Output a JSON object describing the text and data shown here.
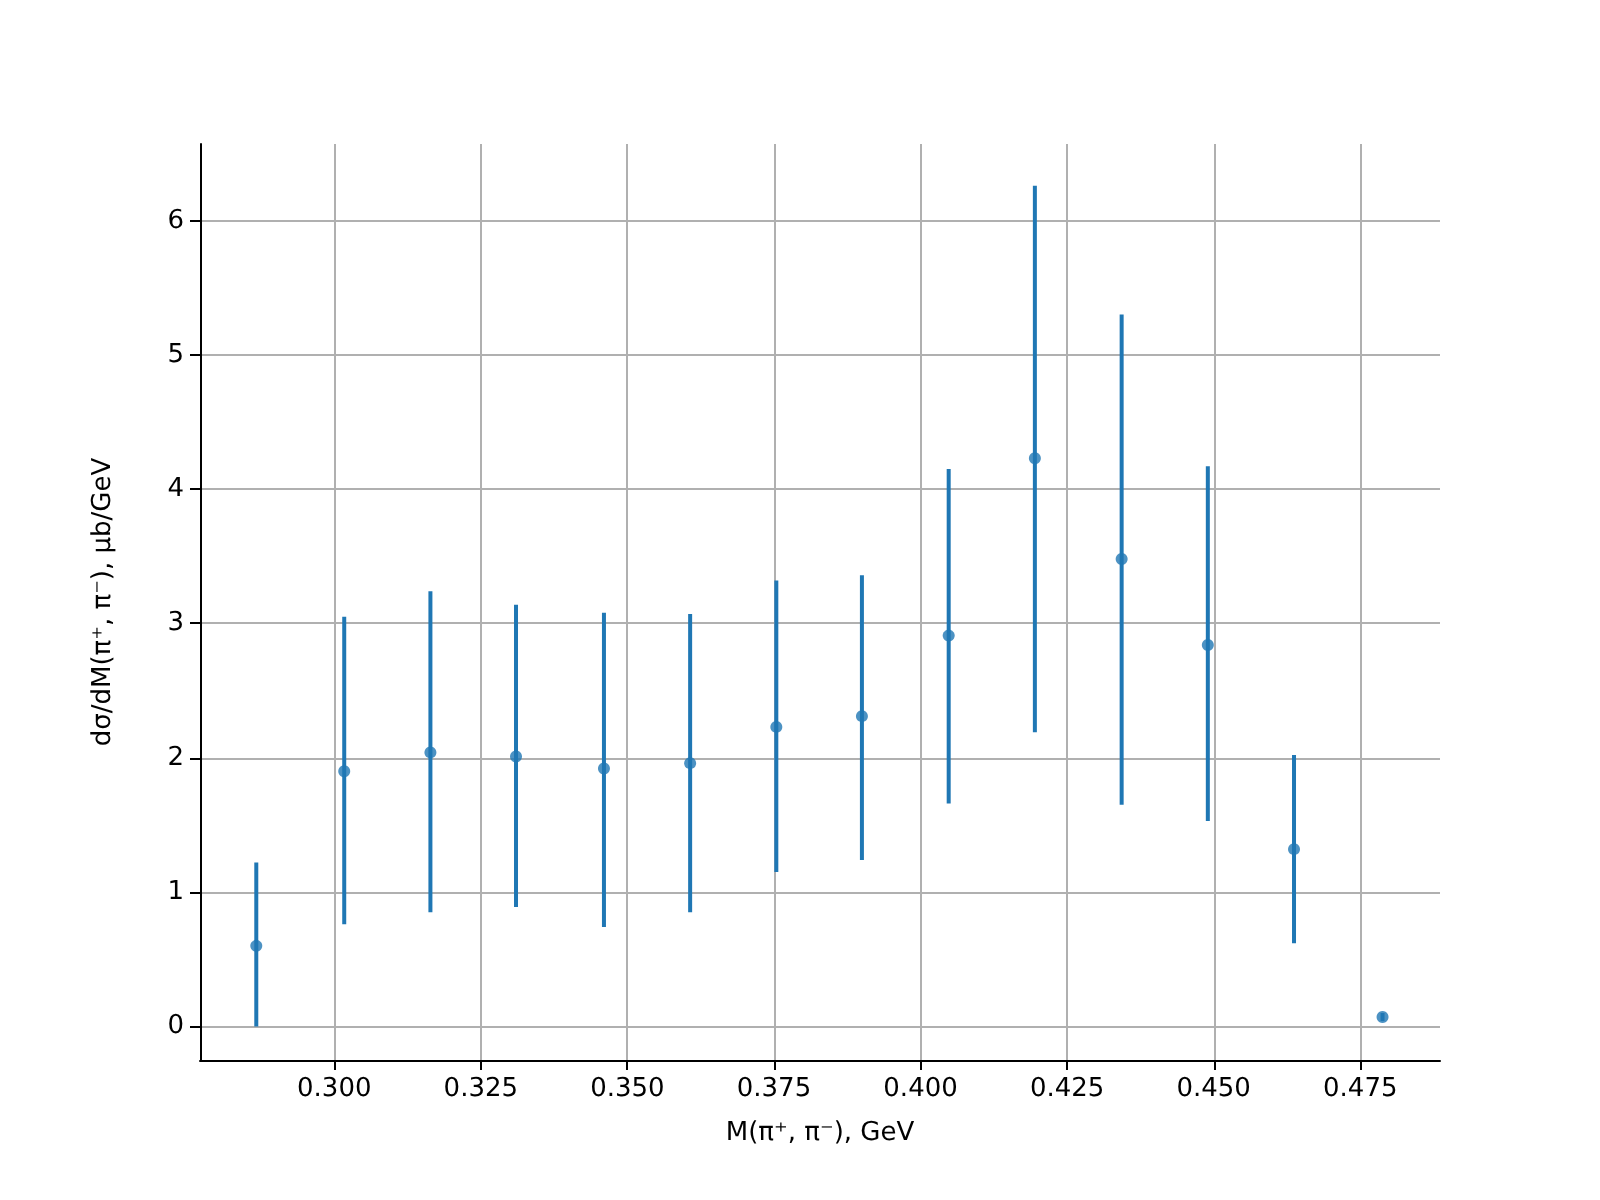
{
  "chart_data": {
    "type": "scatter",
    "xlabel": "M(π⁺, π⁻), GeV",
    "ylabel": "dσ/dM(π⁺, π⁻), μb/GeV",
    "x": [
      0.2867,
      0.3017,
      0.3164,
      0.331,
      0.346,
      0.3607,
      0.3754,
      0.39,
      0.4048,
      0.4195,
      0.4343,
      0.449,
      0.4637,
      0.4788
    ],
    "series": [
      {
        "color": "#1f77b4",
        "values": [
          0.6,
          1.9,
          2.04,
          2.01,
          1.92,
          1.96,
          2.23,
          2.31,
          2.91,
          4.23,
          3.48,
          2.84,
          1.32,
          0.07
        ],
        "errors": [
          [
            0,
            1.22
          ],
          [
            0.76,
            3.05
          ],
          [
            0.85,
            3.24
          ],
          [
            0.89,
            3.14
          ],
          [
            0.74,
            3.08
          ],
          [
            0.85,
            3.07
          ],
          [
            1.15,
            3.32
          ],
          [
            1.24,
            3.36
          ],
          [
            1.66,
            4.15
          ],
          [
            2.19,
            6.26
          ],
          [
            1.65,
            5.3
          ],
          [
            1.53,
            4.17
          ],
          [
            0.62,
            2.02
          ],
          [
            0.04,
            0.1
          ]
        ]
      }
    ],
    "xlim": [
      0.2771,
      0.4886
    ],
    "ylim": [
      -0.25,
      6.57
    ],
    "xticks": [
      {
        "value": 0.3,
        "label": "0.300"
      },
      {
        "value": 0.325,
        "label": "0.325"
      },
      {
        "value": 0.35,
        "label": "0.350"
      },
      {
        "value": 0.375,
        "label": "0.375"
      },
      {
        "value": 0.4,
        "label": "0.400"
      },
      {
        "value": 0.425,
        "label": "0.425"
      },
      {
        "value": 0.45,
        "label": "0.450"
      },
      {
        "value": 0.475,
        "label": "0.475"
      }
    ],
    "yticks": [
      0,
      1,
      2,
      3,
      4,
      5,
      6
    ],
    "grid": true,
    "marker": "circle"
  }
}
